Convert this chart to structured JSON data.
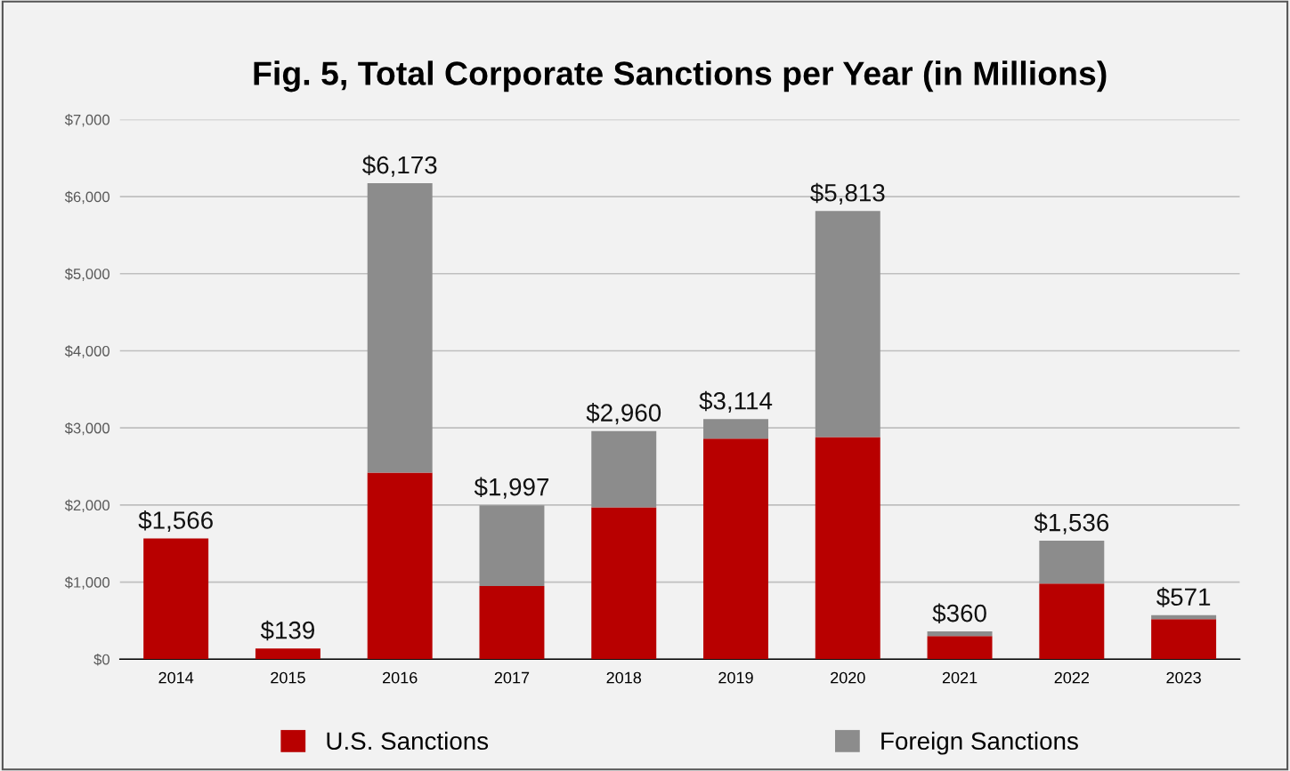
{
  "chart_data": {
    "type": "bar",
    "title": "Fig. 5, Total Corporate Sanctions per Year (in Millions)",
    "categories": [
      "2014",
      "2015",
      "2016",
      "2017",
      "2018",
      "2019",
      "2020",
      "2021",
      "2022",
      "2023"
    ],
    "stacked": true,
    "series": [
      {
        "name": "U.S. Sanctions",
        "color": "#b80000",
        "values": [
          1566,
          139,
          2420,
          950,
          1970,
          2860,
          2880,
          300,
          980,
          520
        ]
      },
      {
        "name": "Foreign Sanctions",
        "color": "#8c8c8c",
        "values": [
          0,
          0,
          3753,
          1047,
          990,
          254,
          2933,
          60,
          556,
          51
        ]
      }
    ],
    "totals": [
      "$1,566",
      "$139",
      "$6,173",
      "$1,997",
      "$2,960",
      "$3,114",
      "$5,813",
      "$360",
      "$1,536",
      "$571"
    ],
    "ylim": [
      0,
      7000
    ],
    "yticks": [
      {
        "value": 0,
        "label": "$0"
      },
      {
        "value": 1000,
        "label": "$1,000"
      },
      {
        "value": 2000,
        "label": "$2,000"
      },
      {
        "value": 3000,
        "label": "$3,000"
      },
      {
        "value": 4000,
        "label": "$4,000"
      },
      {
        "value": 5000,
        "label": "$5,000"
      },
      {
        "value": 6000,
        "label": "$6,000"
      },
      {
        "value": 7000,
        "label": "$7,000"
      }
    ],
    "grid": "y",
    "legend": "bottom"
  }
}
